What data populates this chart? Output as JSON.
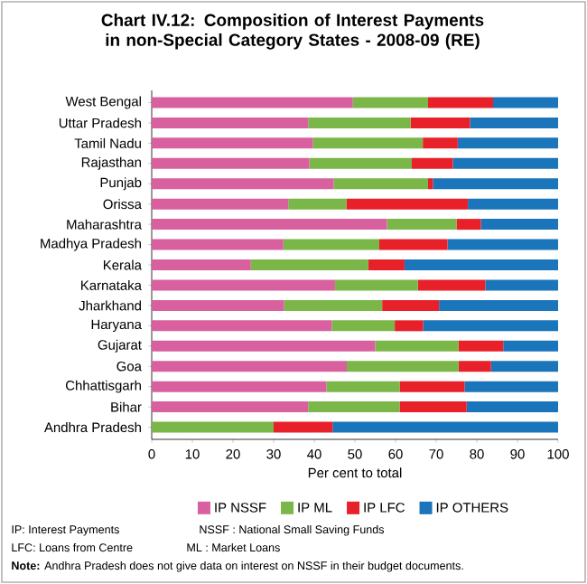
{
  "chart_data": {
    "type": "bar",
    "orientation": "horizontal",
    "stacked": true,
    "title": "Chart IV.12: Composition of Interest Payments in non-Special Category States - 2008-09 (RE)",
    "xlabel": "Per cent to total",
    "categories": [
      "West Bengal",
      "Uttar Pradesh",
      "Tamil Nadu",
      "Rajasthan",
      "Punjab",
      "Orissa",
      "Maharashtra",
      "Madhya Pradesh",
      "Kerala",
      "Karnataka",
      "Jharkhand",
      "Haryana",
      "Gujarat",
      "Goa",
      "Chhattisgarh",
      "Bihar",
      "Andhra Pradesh"
    ],
    "series": [
      {
        "name": "IP NSSF",
        "color": "#d9609f",
        "values": [
          49.5,
          38.5,
          39.7,
          38.8,
          44.8,
          33.6,
          57.9,
          32.4,
          24.4,
          45.1,
          32.6,
          44.3,
          55,
          48,
          43,
          38.5,
          0
        ]
      },
      {
        "name": "IP ML",
        "color": "#7ab648",
        "values": [
          18.5,
          25.2,
          27,
          25.2,
          23.2,
          14.3,
          17.1,
          23.6,
          28.9,
          20.4,
          24.1,
          15.5,
          20.5,
          27.5,
          18,
          22.5,
          30
        ]
      },
      {
        "name": "IP LFC",
        "color": "#e8202a",
        "values": [
          16,
          14.6,
          8.6,
          10.1,
          1.2,
          29.9,
          6,
          16.8,
          8.9,
          16.6,
          14,
          7,
          11,
          8,
          16,
          16.5,
          14.5
        ]
      },
      {
        "name": "IP OTHERS",
        "color": "#1a75bb",
        "values": [
          16,
          21.7,
          24.7,
          25.9,
          30.8,
          22.2,
          19,
          27.2,
          37.8,
          17.9,
          29.3,
          33.2,
          13.5,
          16.5,
          23,
          22.5,
          55.5
        ]
      }
    ],
    "xlim": [
      0,
      100
    ],
    "xticks": [
      0,
      10,
      20,
      30,
      40,
      50,
      60,
      70,
      80,
      90,
      100
    ],
    "legend": "bottom",
    "annotations": [
      "IP: Interest Payments",
      "NSSF : National Small Saving Funds",
      "LFC: Loans from Centre",
      "ML : Market Loans",
      "**Note:** Andhra Pradesh does not give data on interest on NSSF in their budget documents."
    ]
  }
}
